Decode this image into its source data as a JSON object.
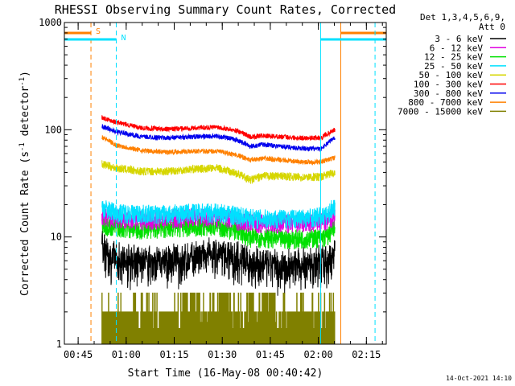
{
  "chart_data": {
    "type": "line",
    "title": "RHESSI Observing Summary Count Rates, Corrected",
    "xlabel": "Start Time (16-May-08 00:40:42)",
    "ylabel": "Corrected Count Rate (s",
    "ylabel_sup": "-1",
    "ylabel_tail": " detector",
    "ylabel_tail_sup": "-1",
    "ylabel_end": ")",
    "yscale": "log",
    "ylim": [
      1,
      1000
    ],
    "x_unit": "minutes since 00:40:42",
    "xlim": [
      0,
      100.5
    ],
    "xticks": [
      {
        "label": "00:45",
        "value": 4.3
      },
      {
        "label": "01:00",
        "value": 19.3
      },
      {
        "label": "01:15",
        "value": 34.3
      },
      {
        "label": "01:30",
        "value": 49.3
      },
      {
        "label": "01:45",
        "value": 64.3
      },
      {
        "label": "02:00",
        "value": 79.3
      },
      {
        "label": "02:15",
        "value": 94.3
      }
    ],
    "yticks": [
      {
        "label": "1000",
        "value": 1000
      },
      {
        "label": "100",
        "value": 100
      },
      {
        "label": "10",
        "value": 10
      },
      {
        "label": "1",
        "value": 1
      }
    ],
    "legend_header": [
      "Det 1,3,4,5,6,9,",
      "Att 0"
    ],
    "legend_placement": "right",
    "data_start": 11.7,
    "data_end": 84.5,
    "series": [
      {
        "name": "3 - 6 keV",
        "color": "#000000",
        "noise": 0.9,
        "points": [
          [
            11.7,
            8.5
          ],
          [
            14,
            6.5
          ],
          [
            20,
            6.0
          ],
          [
            28,
            5.8
          ],
          [
            36,
            6.0
          ],
          [
            44,
            6.6
          ],
          [
            48,
            7.0
          ],
          [
            52,
            6.6
          ],
          [
            58,
            5.8
          ],
          [
            64,
            5.4
          ],
          [
            72,
            5.4
          ],
          [
            80,
            5.8
          ],
          [
            83.5,
            6.0
          ],
          [
            84.5,
            8.0
          ]
        ]
      },
      {
        "name": "6 - 12 keV",
        "color": "#e000e0",
        "noise": 0.6,
        "points": [
          [
            11.7,
            16
          ],
          [
            16,
            15
          ],
          [
            24,
            14.5
          ],
          [
            32,
            15
          ],
          [
            40,
            15.5
          ],
          [
            48,
            15.5
          ],
          [
            54,
            14.5
          ],
          [
            60,
            13.5
          ],
          [
            68,
            13.5
          ],
          [
            76,
            13.5
          ],
          [
            82,
            14
          ],
          [
            84.5,
            16
          ]
        ]
      },
      {
        "name": "12 - 25 keV",
        "color": "#00e000",
        "noise": 0.6,
        "points": [
          [
            11.7,
            13
          ],
          [
            16,
            12.5
          ],
          [
            24,
            12
          ],
          [
            32,
            12.3
          ],
          [
            40,
            12.6
          ],
          [
            48,
            12.6
          ],
          [
            54,
            11.5
          ],
          [
            58,
            10.0
          ],
          [
            62,
            10.0
          ],
          [
            68,
            9.6
          ],
          [
            76,
            9.8
          ],
          [
            82,
            10
          ],
          [
            84.5,
            12.5
          ]
        ]
      },
      {
        "name": "25 - 50 keV",
        "color": "#00e0ff",
        "noise": 0.6,
        "points": [
          [
            11.7,
            19
          ],
          [
            16,
            17
          ],
          [
            24,
            16.5
          ],
          [
            32,
            16.5
          ],
          [
            40,
            17
          ],
          [
            48,
            17
          ],
          [
            54,
            16
          ],
          [
            60,
            15
          ],
          [
            68,
            15
          ],
          [
            76,
            15.2
          ],
          [
            82,
            16
          ],
          [
            84.5,
            20
          ]
        ]
      },
      {
        "name": "50 - 100 keV",
        "color": "#d6d600",
        "noise": 0.25,
        "points": [
          [
            11.7,
            48
          ],
          [
            16,
            44
          ],
          [
            24,
            41
          ],
          [
            32,
            41
          ],
          [
            40,
            43
          ],
          [
            48,
            44
          ],
          [
            54,
            39
          ],
          [
            58,
            34
          ],
          [
            62,
            37
          ],
          [
            68,
            37
          ],
          [
            74,
            36
          ],
          [
            80,
            36.5
          ],
          [
            84.5,
            40
          ]
        ]
      },
      {
        "name": "100 - 300 keV",
        "color": "#ff0000",
        "noise": 0.15,
        "points": [
          [
            11.7,
            130
          ],
          [
            16,
            118
          ],
          [
            24,
            104
          ],
          [
            32,
            101
          ],
          [
            40,
            104
          ],
          [
            48,
            106
          ],
          [
            54,
            98
          ],
          [
            58,
            86
          ],
          [
            62,
            88
          ],
          [
            68,
            86
          ],
          [
            74,
            84
          ],
          [
            80,
            84
          ],
          [
            84.5,
            100
          ]
        ]
      },
      {
        "name": "300 - 800 keV",
        "color": "#0000ee",
        "noise": 0.15,
        "points": [
          [
            11.7,
            108
          ],
          [
            16,
            96
          ],
          [
            24,
            86
          ],
          [
            32,
            84
          ],
          [
            40,
            86
          ],
          [
            48,
            87
          ],
          [
            54,
            80
          ],
          [
            58,
            70
          ],
          [
            62,
            73
          ],
          [
            68,
            70
          ],
          [
            74,
            67
          ],
          [
            80,
            66
          ],
          [
            84.5,
            85
          ]
        ]
      },
      {
        "name": "800 - 7000 keV",
        "color": "#ff8000",
        "noise": 0.15,
        "points": [
          [
            11.7,
            86
          ],
          [
            16,
            72
          ],
          [
            24,
            64
          ],
          [
            32,
            62
          ],
          [
            40,
            63
          ],
          [
            48,
            63
          ],
          [
            54,
            58
          ],
          [
            58,
            52
          ],
          [
            62,
            54
          ],
          [
            68,
            52
          ],
          [
            74,
            50
          ],
          [
            80,
            50
          ],
          [
            84.5,
            55
          ]
        ]
      },
      {
        "name": "7000 - 15000 keV",
        "color": "#808000",
        "noise": 0,
        "points": []
      }
    ],
    "annotations": [
      {
        "label": "S",
        "type": "saa",
        "color": "#ff8000",
        "intervals": [
          [
            0,
            8.3
          ],
          [
            86.3,
            100.5
          ]
        ],
        "edges": [
          8.3,
          86.3
        ]
      },
      {
        "label": "N",
        "type": "night",
        "color": "#00e0ff",
        "intervals": [
          [
            0,
            16.2
          ],
          [
            80.0,
            100.5
          ]
        ],
        "edges": [
          16.2,
          80.0,
          97.0
        ]
      }
    ]
  },
  "footer": {
    "timestamp": "14-Oct-2021 14:10"
  }
}
